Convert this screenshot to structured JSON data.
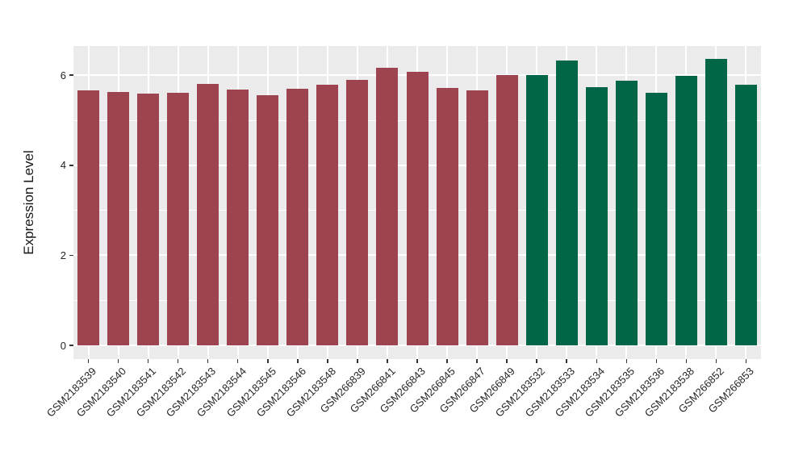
{
  "chart_data": {
    "type": "bar",
    "title": "",
    "xlabel": "",
    "ylabel": "Expression Level",
    "yticks": [
      0,
      2,
      4,
      6
    ],
    "yminor": [
      1,
      3,
      5
    ],
    "ylim": [
      -0.3,
      6.65
    ],
    "grid": "on",
    "legend": "none",
    "panel_bg": "#EBEBEB",
    "grid_color": "#FFFFFF",
    "group_colors": {
      "group1": "#9E4350",
      "group2": "#006647"
    },
    "bars": [
      {
        "label": "GSM2183539",
        "value": 5.66,
        "color": "#9E4350"
      },
      {
        "label": "GSM2183540",
        "value": 5.62,
        "color": "#9E4350"
      },
      {
        "label": "GSM2183541",
        "value": 5.59,
        "color": "#9E4350"
      },
      {
        "label": "GSM2183542",
        "value": 5.61,
        "color": "#9E4350"
      },
      {
        "label": "GSM2183543",
        "value": 5.81,
        "color": "#9E4350"
      },
      {
        "label": "GSM2183544",
        "value": 5.68,
        "color": "#9E4350"
      },
      {
        "label": "GSM2183545",
        "value": 5.55,
        "color": "#9E4350"
      },
      {
        "label": "GSM2183546",
        "value": 5.7,
        "color": "#9E4350"
      },
      {
        "label": "GSM2183548",
        "value": 5.79,
        "color": "#9E4350"
      },
      {
        "label": "GSM266839",
        "value": 5.9,
        "color": "#9E4350"
      },
      {
        "label": "GSM266841",
        "value": 6.17,
        "color": "#9E4350"
      },
      {
        "label": "GSM266843",
        "value": 6.07,
        "color": "#9E4350"
      },
      {
        "label": "GSM266845",
        "value": 5.72,
        "color": "#9E4350"
      },
      {
        "label": "GSM266847",
        "value": 5.66,
        "color": "#9E4350"
      },
      {
        "label": "GSM266849",
        "value": 6.01,
        "color": "#9E4350"
      },
      {
        "label": "GSM2183532",
        "value": 6.01,
        "color": "#006647"
      },
      {
        "label": "GSM2183533",
        "value": 6.32,
        "color": "#006647"
      },
      {
        "label": "GSM2183534",
        "value": 5.74,
        "color": "#006647"
      },
      {
        "label": "GSM2183535",
        "value": 5.88,
        "color": "#006647"
      },
      {
        "label": "GSM2183536",
        "value": 5.61,
        "color": "#006647"
      },
      {
        "label": "GSM2183538",
        "value": 5.99,
        "color": "#006647"
      },
      {
        "label": "GSM266852",
        "value": 6.36,
        "color": "#006647"
      },
      {
        "label": "GSM266853",
        "value": 5.79,
        "color": "#006647"
      }
    ]
  }
}
